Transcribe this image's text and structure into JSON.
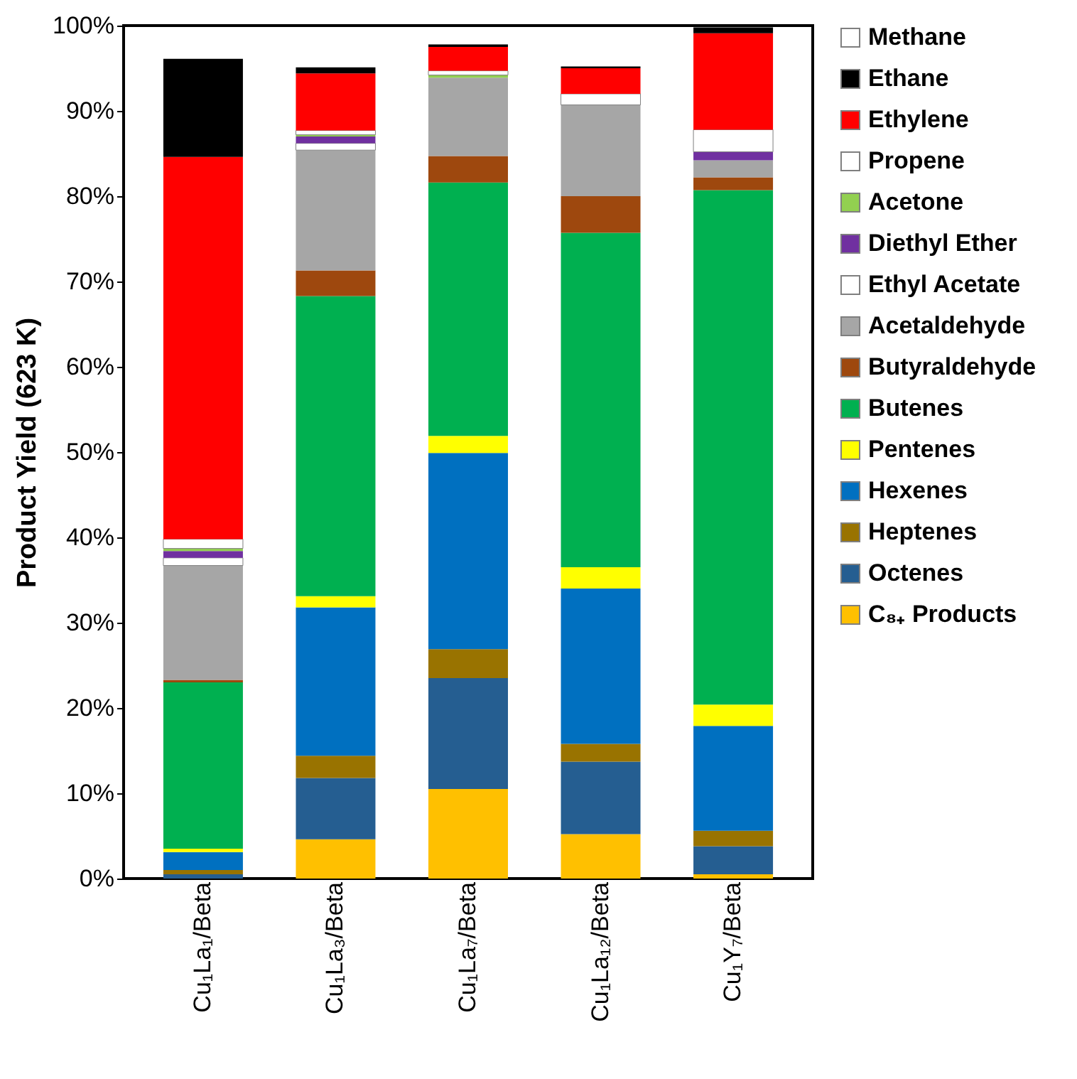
{
  "chart_data": {
    "type": "bar",
    "stacked": true,
    "ylabel": "Product Yield (623 K)",
    "categories": [
      "Cu₁La₁/Beta",
      "Cu₁La₃/Beta",
      "Cu₁La₇/Beta",
      "Cu₁La₁₂/Beta",
      "Cu₁Y₇/Beta"
    ],
    "series": [
      {
        "name": "C₈₊ Products",
        "color": "#ffc000",
        "values": [
          null,
          4.6,
          10.5,
          5.2,
          0.5
        ]
      },
      {
        "name": "Octenes",
        "color": "#255e91",
        "values": [
          0.5,
          7.2,
          13.0,
          8.5,
          3.3
        ]
      },
      {
        "name": "Heptenes",
        "color": "#997300",
        "values": [
          0.5,
          2.6,
          3.4,
          2.1,
          1.8
        ]
      },
      {
        "name": "Hexenes",
        "color": "#0070c0",
        "values": [
          2.1,
          17.4,
          23.0,
          18.2,
          12.3
        ]
      },
      {
        "name": "Pentenes",
        "color": "#ffff00",
        "values": [
          0.4,
          1.3,
          2.0,
          2.5,
          2.5
        ]
      },
      {
        "name": "Butenes",
        "color": "#00b050",
        "values": [
          19.5,
          35.2,
          29.7,
          39.2,
          60.3
        ]
      },
      {
        "name": "Butyraldehyde",
        "color": "#9e480e",
        "values": [
          0.3,
          3.0,
          3.1,
          4.3,
          1.5
        ]
      },
      {
        "name": "Acetaldehyde",
        "color": "#a6a6a6",
        "values": [
          13.4,
          14.1,
          9.2,
          10.7,
          2.0
        ]
      },
      {
        "name": "Ethyl Acetate",
        "color": "#ffffff",
        "values": [
          0.9,
          0.8,
          null,
          null,
          null
        ]
      },
      {
        "name": "Diethyl Ether",
        "color": "#7030a0",
        "values": [
          0.8,
          0.8,
          null,
          null,
          1.0
        ]
      },
      {
        "name": "Acetone",
        "color": "#92d050",
        "values": [
          0.3,
          0.2,
          0.3,
          null,
          null
        ]
      },
      {
        "name": "Propene",
        "color": "#ffffff",
        "values": [
          1.1,
          0.5,
          0.5,
          1.3,
          2.6
        ]
      },
      {
        "name": "Ethylene",
        "color": "#ff0000",
        "values": [
          44.8,
          6.7,
          2.8,
          3.0,
          11.3
        ]
      },
      {
        "name": "Ethane",
        "color": "#000000",
        "values": [
          11.5,
          0.7,
          0.3,
          0.2,
          0.7
        ]
      },
      {
        "name": "Methane",
        "color": "#ffffff",
        "values": [
          null,
          null,
          null,
          null,
          null
        ]
      }
    ],
    "ylim": [
      0,
      100
    ],
    "yticks": [
      {
        "value": 0,
        "label": "0%"
      },
      {
        "value": 10,
        "label": "10%"
      },
      {
        "value": 20,
        "label": "20%"
      },
      {
        "value": 30,
        "label": "30%"
      },
      {
        "value": 40,
        "label": "40%"
      },
      {
        "value": 50,
        "label": "50%"
      },
      {
        "value": 60,
        "label": "60%"
      },
      {
        "value": 70,
        "label": "70%"
      },
      {
        "value": 80,
        "label": "80%"
      },
      {
        "value": 90,
        "label": "90%"
      },
      {
        "value": 100,
        "label": "100%"
      }
    ],
    "grid": false,
    "legend": "right"
  }
}
